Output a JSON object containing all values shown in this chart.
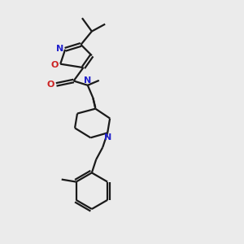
{
  "bg_color": "#ebebeb",
  "bond_color": "#1a1a1a",
  "N_color": "#2222cc",
  "O_color": "#cc2222",
  "line_width": 1.6,
  "font_size": 7.5,
  "figsize": [
    3.0,
    3.0
  ],
  "dpi": 100,
  "xlim": [
    0,
    1
  ],
  "ylim": [
    0,
    1
  ]
}
